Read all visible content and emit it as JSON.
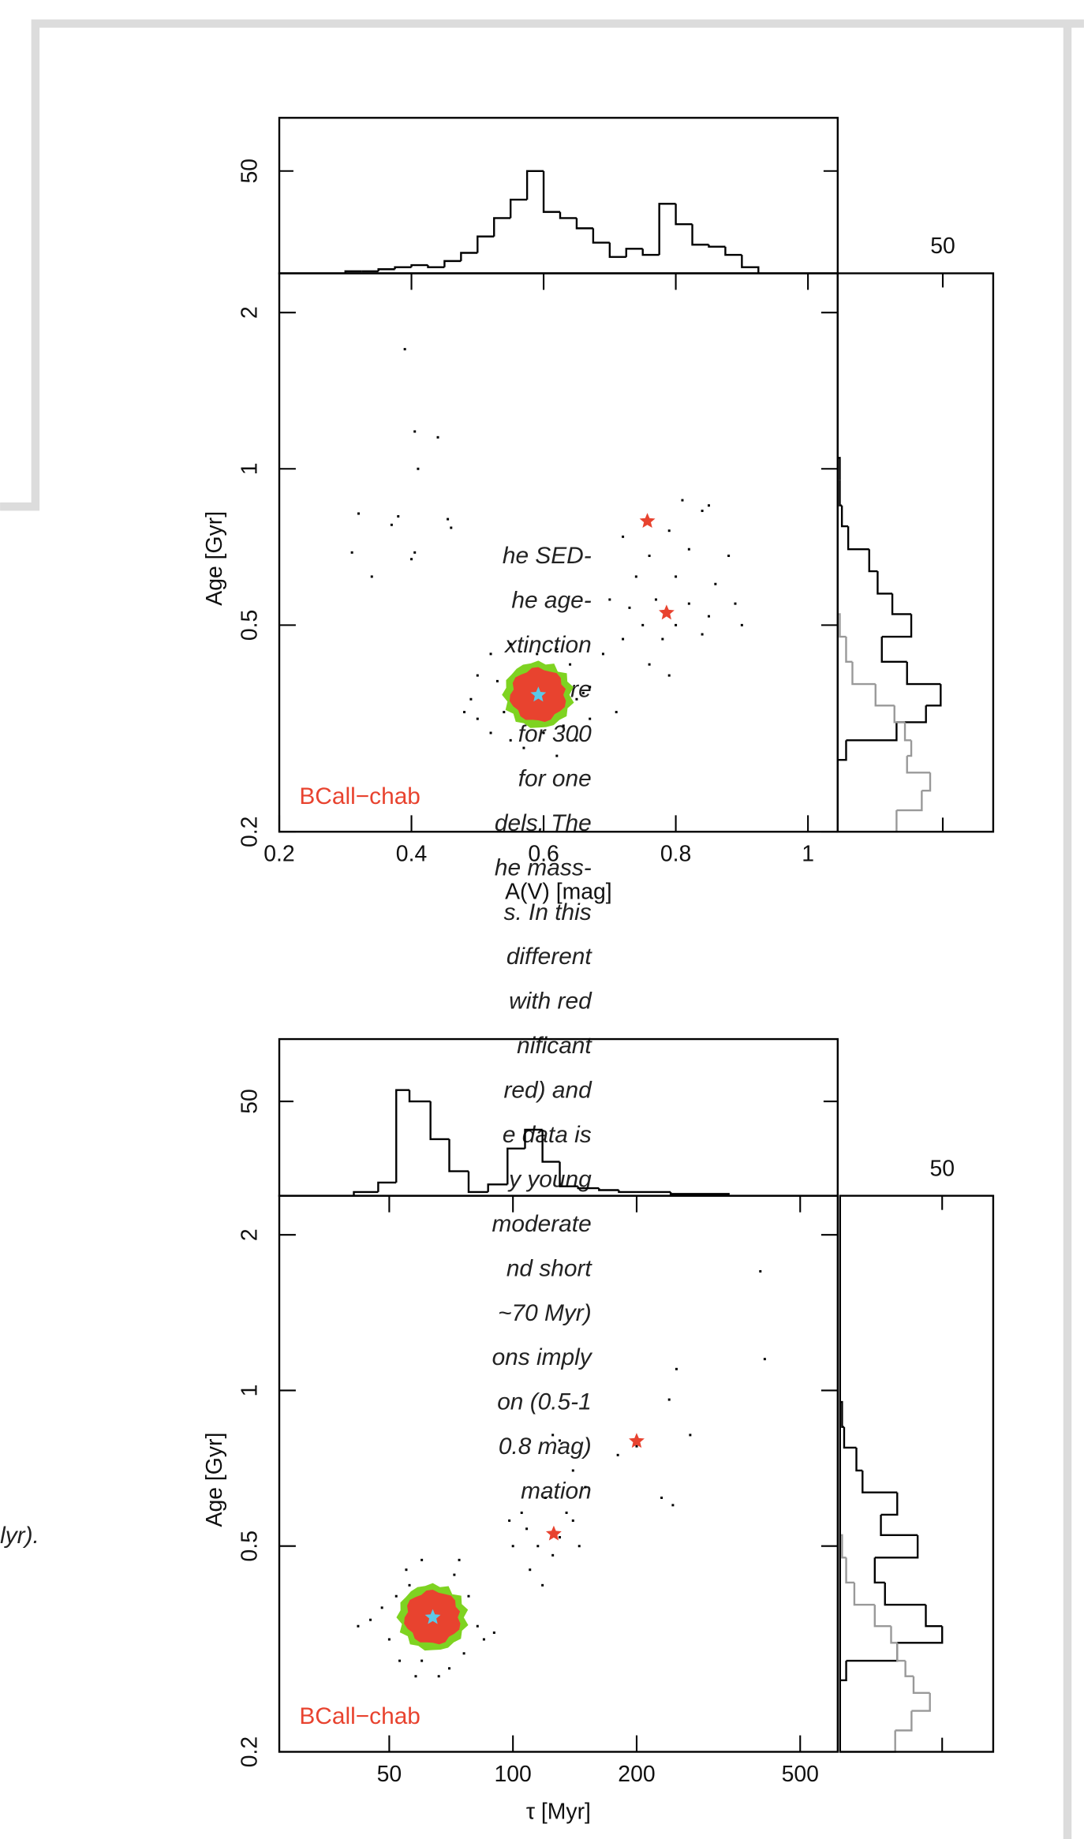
{
  "text_lines": [
    "he SED-",
    "he age-",
    "xtinction",
    "dots are",
    "for 300",
    "for one",
    "dels. The",
    "he mass-",
    "s. In this",
    "different",
    "with red",
    "nificant",
    "red) and",
    "e data is",
    "y young",
    "moderate",
    "nd short",
    "~70 Myr)",
    "ons imply",
    "on (0.5-1",
    "0.8 mag)",
    "mation",
    "lyr)."
  ],
  "chart_data": [
    {
      "type": "histogram",
      "orientation": "vertical",
      "xlim": [
        0.2,
        1.045
      ],
      "ylim": [
        0,
        76
      ],
      "yticks": [
        50
      ],
      "series": [
        {
          "color": "#000000",
          "bins": [
            0.3,
            0.325,
            0.35,
            0.375,
            0.4,
            0.425,
            0.45,
            0.475,
            0.5,
            0.525,
            0.55,
            0.575,
            0.6,
            0.625,
            0.65,
            0.675,
            0.7,
            0.725,
            0.75,
            0.775,
            0.8,
            0.825,
            0.85,
            0.875,
            0.9,
            0.925
          ],
          "values": [
            1,
            1,
            2,
            3,
            4,
            3,
            6,
            10,
            18,
            27,
            36,
            50,
            30,
            27,
            22,
            15,
            8,
            12,
            9,
            34,
            24,
            14,
            13,
            9,
            3
          ]
        }
      ]
    },
    {
      "type": "scatter",
      "xlim": [
        0.2,
        1.045
      ],
      "ylim": [
        0.2,
        2.38
      ],
      "ylog": true,
      "xticks": [
        0.2,
        0.4,
        0.6,
        0.8,
        1
      ],
      "yticks": [
        0.2,
        0.5,
        1,
        2
      ],
      "xlabel": "A(V) [mag]",
      "ylabel": "Age [Gyr]",
      "annotation": "BCall−chab",
      "annotation_color": "#e8432f",
      "color": "#000000",
      "x": [
        0.39,
        0.405,
        0.44,
        0.41,
        0.32,
        0.37,
        0.38,
        0.455,
        0.46,
        0.31,
        0.405,
        0.4,
        0.34,
        0.81,
        0.84,
        0.85,
        0.72,
        0.79,
        0.82,
        0.76,
        0.88,
        0.74,
        0.8,
        0.86,
        0.7,
        0.73,
        0.77,
        0.82,
        0.89,
        0.75,
        0.8,
        0.85,
        0.72,
        0.78,
        0.84,
        0.9,
        0.69,
        0.76,
        0.79,
        0.67,
        0.65,
        0.71,
        0.52,
        0.55,
        0.62,
        0.5,
        0.53,
        0.64,
        0.49,
        0.66,
        0.5,
        0.52,
        0.63,
        0.67,
        0.55,
        0.6,
        0.57,
        0.62,
        0.54,
        0.65,
        0.48,
        0.59
      ],
      "y": [
        1.7,
        1.18,
        1.15,
        1.0,
        0.82,
        0.78,
        0.81,
        0.8,
        0.77,
        0.69,
        0.69,
        0.67,
        0.62,
        0.87,
        0.83,
        0.85,
        0.74,
        0.76,
        0.7,
        0.68,
        0.68,
        0.62,
        0.62,
        0.6,
        0.56,
        0.54,
        0.56,
        0.55,
        0.55,
        0.5,
        0.5,
        0.52,
        0.47,
        0.47,
        0.48,
        0.5,
        0.44,
        0.42,
        0.4,
        0.38,
        0.36,
        0.34,
        0.44,
        0.46,
        0.45,
        0.4,
        0.39,
        0.42,
        0.36,
        0.37,
        0.33,
        0.31,
        0.32,
        0.33,
        0.3,
        0.31,
        0.29,
        0.28,
        0.34,
        0.3,
        0.34,
        0.44
      ],
      "stars": [
        {
          "x": 0.757,
          "y": 0.793,
          "color": "#e8432f"
        },
        {
          "x": 0.786,
          "y": 0.528,
          "color": "#e8432f"
        },
        {
          "x": 0.592,
          "y": 0.367,
          "color": "#5bc8e8"
        }
      ]
    },
    {
      "type": "histogram",
      "orientation": "horizontal",
      "xlim": [
        0,
        74
      ],
      "xticks": [
        50
      ],
      "ylim": [
        0.2,
        2.38
      ],
      "ylog": true,
      "series": [
        {
          "color": "#000000",
          "bins": [
            0.275,
            0.3,
            0.325,
            0.35,
            0.385,
            0.425,
            0.475,
            0.525,
            0.575,
            0.635,
            0.7,
            0.775,
            0.85,
            0.95,
            1.05
          ],
          "values": [
            4,
            28,
            42,
            49,
            33,
            21,
            35,
            26,
            19,
            15,
            5,
            2,
            1,
            1
          ]
        },
        {
          "color": "#999999",
          "bins": [
            0.2,
            0.22,
            0.24,
            0.26,
            0.28,
            0.3,
            0.325,
            0.35,
            0.385,
            0.425,
            0.475,
            0.525
          ],
          "values": [
            28,
            40,
            44,
            33,
            35,
            32,
            27,
            18,
            7,
            4,
            1
          ]
        }
      ]
    },
    {
      "type": "histogram",
      "orientation": "vertical",
      "xlim": [
        27,
        617
      ],
      "xlog": true,
      "ylim": [
        0,
        83
      ],
      "yticks": [
        50
      ],
      "series": [
        {
          "color": "#000000",
          "bins": [
            41,
            47,
            52,
            56,
            63,
            70,
            78,
            87,
            97,
            107,
            118,
            130,
            144,
            162,
            181,
            200,
            242,
            335
          ],
          "values": [
            2,
            7,
            56,
            50,
            30,
            13,
            2,
            6,
            25,
            35,
            18,
            5,
            4,
            3,
            2,
            2,
            1
          ]
        }
      ]
    },
    {
      "type": "scatter",
      "xlim": [
        27,
        617
      ],
      "xlog": true,
      "ylim": [
        0.2,
        2.38
      ],
      "ylog": true,
      "xticks": [
        50,
        100,
        200,
        500
      ],
      "yticks": [
        0.2,
        0.5,
        1,
        2
      ],
      "xlabel": "τ [Myr]",
      "ylabel": "Age [Gyr]",
      "annotation": "BCall−chab",
      "annotation_color": "#e8432f",
      "color": "#000000",
      "x": [
        400,
        410,
        250,
        240,
        270,
        200,
        180,
        230,
        245,
        150,
        140,
        130,
        125,
        105,
        100,
        110,
        135,
        120,
        145,
        115,
        130,
        125,
        108,
        140,
        118,
        98,
        55,
        60,
        72,
        52,
        78,
        48,
        45,
        82,
        85,
        50,
        53,
        60,
        70,
        76,
        58,
        66,
        42,
        90,
        56,
        74
      ],
      "y": [
        1.7,
        1.15,
        1.1,
        0.96,
        0.82,
        0.78,
        0.75,
        0.62,
        0.6,
        0.65,
        0.7,
        0.8,
        0.82,
        0.58,
        0.5,
        0.45,
        0.58,
        0.62,
        0.5,
        0.5,
        0.52,
        0.48,
        0.54,
        0.56,
        0.42,
        0.56,
        0.45,
        0.47,
        0.44,
        0.4,
        0.4,
        0.38,
        0.36,
        0.35,
        0.33,
        0.33,
        0.3,
        0.3,
        0.29,
        0.31,
        0.28,
        0.28,
        0.35,
        0.34,
        0.42,
        0.47
      ],
      "stars": [
        {
          "x": 200,
          "y": 0.798,
          "color": "#e8432f"
        },
        {
          "x": 125.7,
          "y": 0.528,
          "color": "#e8432f"
        },
        {
          "x": 63.8,
          "y": 0.364,
          "color": "#5bc8e8"
        }
      ]
    },
    {
      "type": "histogram",
      "orientation": "horizontal",
      "xlim": [
        0,
        75
      ],
      "xticks": [
        50
      ],
      "ylim": [
        0.2,
        2.38
      ],
      "ylog": true,
      "series": [
        {
          "color": "#000000",
          "bins": [
            0.275,
            0.3,
            0.325,
            0.35,
            0.385,
            0.425,
            0.475,
            0.525,
            0.575,
            0.635,
            0.7,
            0.775,
            0.85,
            0.95
          ],
          "values": [
            3,
            28,
            50,
            42,
            22,
            17,
            38,
            20,
            28,
            11,
            8,
            2,
            1
          ]
        },
        {
          "color": "#999999",
          "bins": [
            0.2,
            0.22,
            0.24,
            0.26,
            0.28,
            0.3,
            0.325,
            0.35,
            0.385,
            0.425,
            0.475,
            0.525
          ],
          "values": [
            27,
            35,
            44,
            36,
            32,
            28,
            25,
            17,
            7,
            3,
            1
          ]
        }
      ]
    }
  ]
}
